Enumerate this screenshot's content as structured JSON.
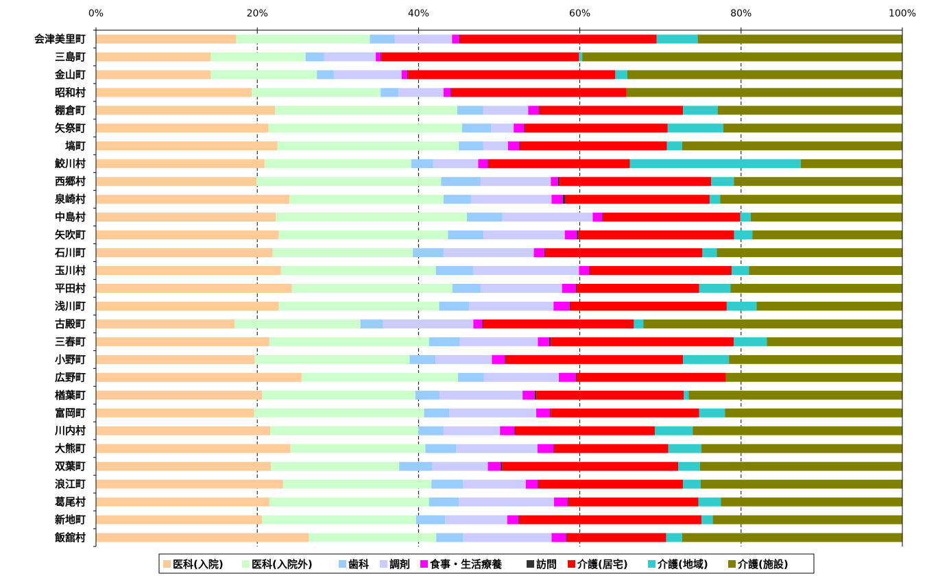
{
  "chart_data": {
    "type": "bar",
    "orientation": "horizontal",
    "stacked": "percent",
    "xlim": [
      0,
      100
    ],
    "x_ticks": [
      "0%",
      "20%",
      "40%",
      "60%",
      "80%",
      "100%"
    ],
    "grid": "vertical dashed",
    "legend_placement": "bottom",
    "categories": [
      "会津美里町",
      "三島町",
      "金山町",
      "昭和村",
      "棚倉町",
      "矢祭町",
      "塙町",
      "鮫川村",
      "西郷村",
      "泉崎村",
      "中島村",
      "矢吹町",
      "石川町",
      "玉川村",
      "平田村",
      "浅川町",
      "古殿町",
      "三春町",
      "小野町",
      "広野町",
      "楢葉町",
      "富岡町",
      "川内村",
      "大熊町",
      "双葉町",
      "浪江町",
      "葛尾村",
      "新地町",
      "飯舘村"
    ],
    "series": [
      {
        "name": "医科(入院)",
        "color": "#FFCC99",
        "values": [
          17.4,
          14.2,
          14.2,
          19.3,
          22.2,
          21.4,
          22.5,
          20.9,
          19.9,
          24.0,
          22.3,
          22.7,
          21.9,
          23.4,
          24.3,
          22.7,
          17.2,
          21.5,
          19.7,
          25.5,
          20.6,
          19.6,
          21.6,
          24.1,
          21.7,
          23.2,
          21.5,
          20.6,
          26.4
        ]
      },
      {
        "name": "医科(入院外)",
        "color": "#CCFFCC",
        "values": [
          16.6,
          11.8,
          13.2,
          16.0,
          22.6,
          24.0,
          22.5,
          18.2,
          22.9,
          19.1,
          23.7,
          21.0,
          17.4,
          19.6,
          19.9,
          19.9,
          15.6,
          19.8,
          19.2,
          19.4,
          19.0,
          21.1,
          18.4,
          16.7,
          15.9,
          18.4,
          19.8,
          19.1,
          15.8
        ]
      },
      {
        "name": "歯科",
        "color": "#99CCFF",
        "values": [
          3.1,
          2.3,
          2.1,
          2.2,
          3.2,
          3.6,
          3.0,
          2.7,
          4.9,
          3.4,
          4.4,
          4.4,
          3.8,
          4.7,
          3.5,
          3.7,
          2.8,
          3.8,
          3.2,
          3.2,
          3.0,
          3.1,
          3.1,
          3.8,
          4.1,
          3.9,
          3.7,
          3.6,
          3.3
        ]
      },
      {
        "name": "調剤",
        "color": "#CCCCFF",
        "values": [
          7.1,
          6.4,
          8.4,
          5.6,
          5.6,
          2.8,
          3.1,
          5.6,
          8.7,
          10.0,
          11.2,
          10.1,
          11.2,
          13.4,
          10.1,
          10.5,
          11.2,
          9.7,
          7.0,
          9.3,
          10.3,
          10.8,
          7.0,
          10.1,
          6.9,
          7.8,
          11.8,
          7.7,
          11.0
        ]
      },
      {
        "name": "食事・生活療養",
        "color": "#FF00FF",
        "values": [
          0.9,
          0.6,
          0.7,
          0.9,
          1.3,
          1.3,
          1.4,
          1.2,
          0.9,
          1.4,
          1.2,
          1.5,
          1.3,
          1.3,
          1.7,
          2.0,
          1.1,
          1.4,
          1.6,
          2.1,
          1.5,
          1.7,
          1.8,
          2.0,
          1.6,
          1.5,
          1.7,
          1.4,
          1.8
        ]
      },
      {
        "name": "訪問",
        "color": "#333333",
        "values": [
          0.1,
          0.1,
          0.1,
          0.1,
          0.1,
          0.1,
          0.1,
          0.1,
          0.2,
          0.3,
          0.1,
          0.2,
          0.1,
          0.1,
          0.1,
          0.1,
          0.1,
          0.2,
          0.1,
          0.1,
          0.2,
          0.1,
          0.1,
          0.1,
          0.2,
          0.1,
          0.1,
          0.1,
          0.1
        ]
      },
      {
        "name": "介護(居宅)",
        "color": "#FF0000",
        "values": [
          24.4,
          24.5,
          25.7,
          21.7,
          17.8,
          17.7,
          18.2,
          17.5,
          18.8,
          17.9,
          17.0,
          19.3,
          19.5,
          17.9,
          15.2,
          19.4,
          18.7,
          22.7,
          22.0,
          18.5,
          18.3,
          18.4,
          17.3,
          14.1,
          21.8,
          17.9,
          16.1,
          22.6,
          12.3
        ]
      },
      {
        "name": "介護(地域)",
        "color": "#33CCCC",
        "values": [
          5.1,
          0.4,
          1.5,
          0.0,
          4.3,
          6.9,
          1.9,
          21.2,
          2.8,
          1.3,
          1.3,
          2.3,
          1.8,
          2.2,
          3.9,
          3.7,
          1.2,
          4.1,
          5.7,
          0.0,
          0.6,
          3.2,
          4.7,
          4.1,
          2.7,
          2.2,
          2.8,
          1.4,
          2.0
        ]
      },
      {
        "name": "介護(施設)",
        "color": "#808000",
        "values": [
          25.4,
          39.7,
          34.1,
          34.2,
          22.9,
          22.2,
          27.3,
          12.6,
          20.9,
          22.6,
          18.8,
          18.6,
          23.0,
          19.4,
          21.3,
          18.1,
          32.1,
          16.8,
          21.5,
          21.9,
          26.5,
          22.0,
          26.0,
          24.9,
          25.1,
          25.0,
          22.5,
          23.5,
          27.3
        ]
      }
    ]
  }
}
